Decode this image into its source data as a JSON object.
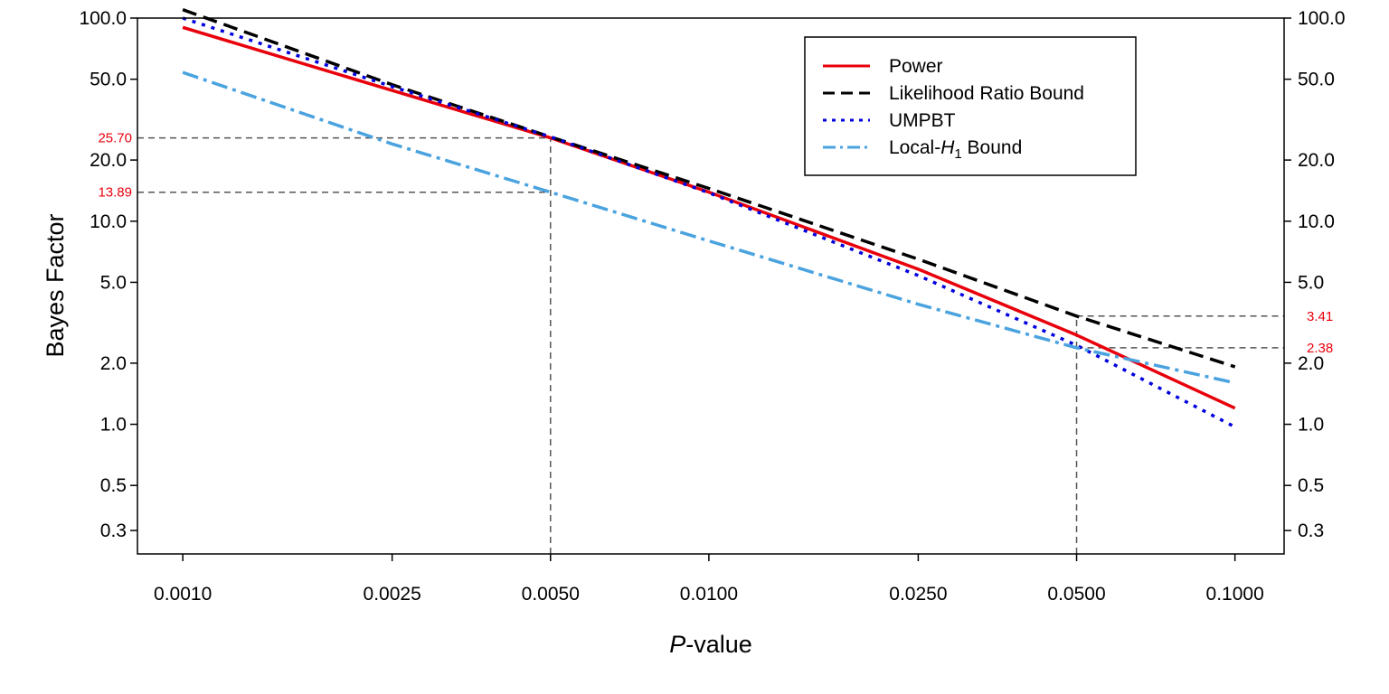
{
  "chart_data": {
    "type": "line",
    "xlabel_italic": "P",
    "xlabel_rest": "-value",
    "ylabel": "Bayes Factor",
    "x_scale": "log",
    "y_scale": "log",
    "xlim": [
      0.00082,
      0.124
    ],
    "ylim": [
      0.23,
      100
    ],
    "x_ticks": [
      0.001,
      0.0025,
      0.005,
      0.01,
      0.025,
      0.05,
      0.1
    ],
    "x_tick_labels": [
      "0.0010",
      "0.0025",
      "0.0050",
      "0.0100",
      "0.0250",
      "0.0500",
      "0.1000"
    ],
    "y_ticks": [
      100,
      50,
      20,
      10,
      5,
      2,
      1,
      0.5,
      0.3
    ],
    "y_tick_labels": [
      "100.0",
      "50.0",
      "20.0",
      "10.0",
      "5.0",
      "2.0",
      "1.0",
      "0.5",
      "0.3"
    ],
    "right_axis_tick_labels": [
      "100.0",
      "50.0",
      "20.0",
      "10.0",
      "5.0",
      "2.0",
      "1.0",
      "0.5",
      "0.3"
    ],
    "reference_lines": [
      {
        "axis": "y",
        "value": 25.7,
        "label": "25.70",
        "side": "left",
        "x_end": 0.005
      },
      {
        "axis": "y",
        "value": 13.89,
        "label": "13.89",
        "side": "left",
        "x_end": 0.005
      },
      {
        "axis": "y",
        "value": 3.41,
        "label": "3.41",
        "side": "right",
        "x_start": 0.05
      },
      {
        "axis": "y",
        "value": 2.38,
        "label": "2.38",
        "side": "right",
        "x_start": 0.05
      },
      {
        "axis": "x",
        "value": 0.005,
        "y_end": 25.7
      },
      {
        "axis": "x",
        "value": 0.05,
        "y_end": 3.41
      }
    ],
    "legend_position": "top-right",
    "series": [
      {
        "name": "Power",
        "color": "#e8000b",
        "style": "solid",
        "x": [
          0.001,
          0.0025,
          0.005,
          0.01,
          0.025,
          0.05,
          0.1
        ],
        "y": [
          90,
          44,
          25.7,
          13.9,
          5.8,
          2.75,
          1.2
        ]
      },
      {
        "name": "Likelihood Ratio Bound",
        "color": "#000000",
        "style": "dashed",
        "x": [
          0.001,
          0.0025,
          0.005,
          0.01,
          0.025,
          0.05,
          0.1
        ],
        "y": [
          110,
          47,
          26,
          14.5,
          6.5,
          3.41,
          1.92
        ]
      },
      {
        "name": "UMPBT",
        "color": "#0000dd",
        "style": "dotted",
        "x": [
          0.001,
          0.0025,
          0.005,
          0.01,
          0.025,
          0.05,
          0.1
        ],
        "y": [
          100,
          46,
          26,
          13.8,
          5.4,
          2.45,
          0.97
        ]
      },
      {
        "name_prefix": "Local-",
        "name_italic": "H",
        "name_sub": "1",
        "name_suffix": " Bound",
        "color": "#4aa3df",
        "style": "dashdot",
        "x": [
          0.001,
          0.0025,
          0.005,
          0.01,
          0.025,
          0.05,
          0.1
        ],
        "y": [
          54,
          24,
          13.89,
          8.0,
          3.9,
          2.38,
          1.6
        ]
      }
    ]
  }
}
